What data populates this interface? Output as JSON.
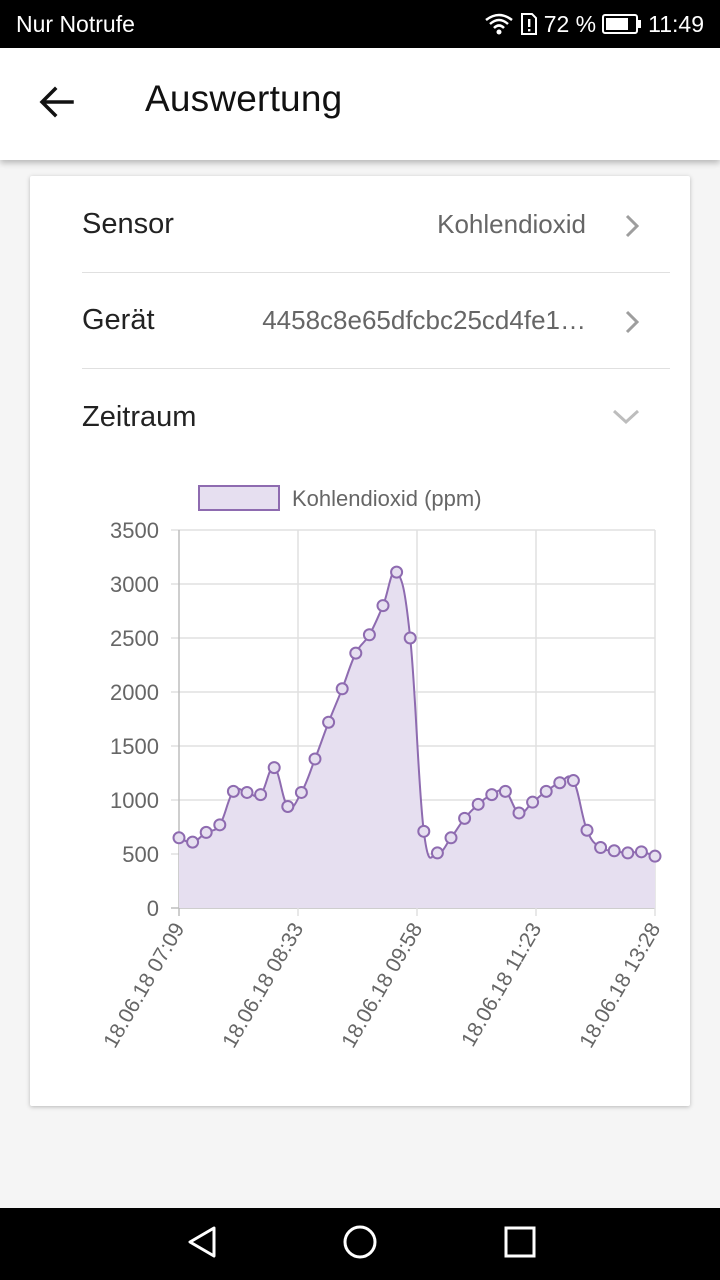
{
  "status_bar": {
    "carrier": "Nur Notrufe",
    "battery": "72 %",
    "time": "11:49"
  },
  "app_bar": {
    "title": "Auswertung",
    "back_icon": "arrow-left-icon"
  },
  "settings": {
    "sensor_label": "Sensor",
    "sensor_value": "Kohlendioxid",
    "device_label": "Gerät",
    "device_value": "4458c8e65dfcbc25cd4fe1…",
    "period_label": "Zeitraum"
  },
  "colors": {
    "accent": "#8e6bb0",
    "fill": "#e6dff0"
  },
  "chart_data": {
    "type": "area",
    "legend": [
      "Kohlendioxid (ppm)"
    ],
    "legend_position": "top",
    "grid": true,
    "ylim": [
      0,
      3500
    ],
    "yticks": [
      0,
      500,
      1000,
      1500,
      2000,
      2500,
      3000,
      3500
    ],
    "xticks": [
      "18.06.18 07:09",
      "18.06.18 08:33",
      "18.06.18 09:58",
      "18.06.18 11:23",
      "18.06.18 13:28"
    ],
    "series": [
      {
        "name": "Kohlendioxid (ppm)",
        "values": [
          650,
          610,
          700,
          770,
          1080,
          1070,
          1050,
          1300,
          940,
          1070,
          1380,
          1720,
          2030,
          2360,
          2530,
          2800,
          3110,
          2500,
          710,
          510,
          650,
          830,
          960,
          1050,
          1080,
          880,
          980,
          1080,
          1160,
          1180,
          720,
          560,
          530,
          510,
          520,
          480
        ]
      }
    ]
  }
}
